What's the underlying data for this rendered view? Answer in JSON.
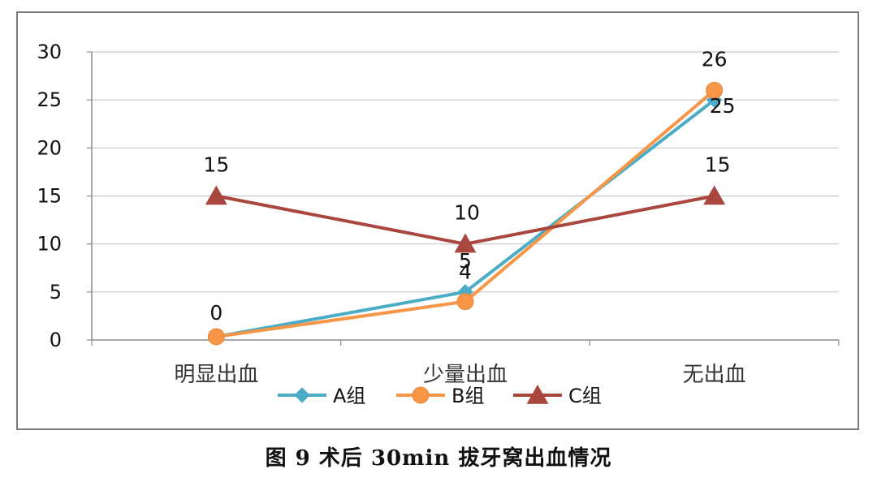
{
  "caption": "图 9  术后 30min 拔牙窝出血情况",
  "chart_data": {
    "type": "line",
    "categories": [
      "明显出血",
      "少量出血",
      "无出血"
    ],
    "ylim": [
      0,
      30
    ],
    "yticks": [
      0,
      5,
      10,
      15,
      20,
      25,
      30
    ],
    "grid": true,
    "legend_position": "bottom",
    "series": [
      {
        "name": "A组",
        "values": [
          0,
          5,
          25
        ],
        "labels": [
          "",
          "5",
          "25"
        ],
        "color": "#4bacc6",
        "marker": "diamond"
      },
      {
        "name": "B组",
        "values": [
          0,
          4,
          26
        ],
        "labels": [
          "0",
          "4",
          "26"
        ],
        "color": "#f79646",
        "marker": "circle"
      },
      {
        "name": "C组",
        "values": [
          15,
          10,
          15
        ],
        "labels": [
          "15",
          "10",
          "15"
        ],
        "color": "#a9463e",
        "marker": "triangle"
      }
    ]
  }
}
